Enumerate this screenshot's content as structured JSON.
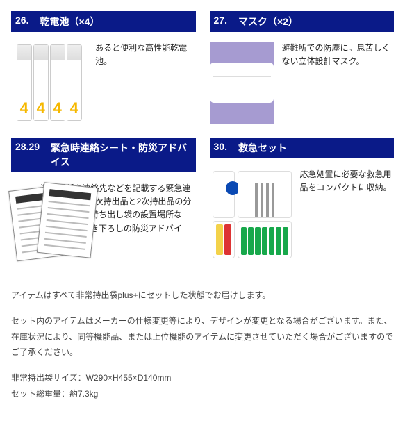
{
  "items": [
    {
      "num": "26.",
      "title": "乾電池（×4）",
      "desc": "あると便利な高性能乾電池。",
      "thumb_type": "batteries"
    },
    {
      "num": "27.",
      "title": "マスク（×2）",
      "desc": "避難所での防塵に。息苦しくない立体設計マスク。",
      "thumb_type": "mask"
    },
    {
      "num": "28.29",
      "title": "緊急時連絡シート・防災アドバイス",
      "desc": "避難場所や連絡先などを記載する緊急連絡シートと、1次持出品と2次持出品の分類例や、非常持ち出し袋の設置場所など、防災士書き下ろしの防災アドバイス。",
      "thumb_type": "sheets"
    },
    {
      "num": "30.",
      "title": "救急セット",
      "desc": "応急処置に必要な救急用品をコンパクトに収納。",
      "thumb_type": "firstaid"
    }
  ],
  "notes": [
    "アイテムはすべて非常持出袋plus+にセットした状態でお届けします。",
    "セット内のアイテムはメーカーの仕様変更等により、デザインが変更となる場合がございます。また、在庫状況により、同等機能品、または上位機能のアイテムに変更させていただく場合がございますのでご了承ください。",
    "非常持出袋サイズ：W290×H455×D140mm\nセット総重量：約7.3kg"
  ],
  "colors": {
    "brand_blue": "#0a1a88",
    "battery_yellow": "#f5b800"
  }
}
